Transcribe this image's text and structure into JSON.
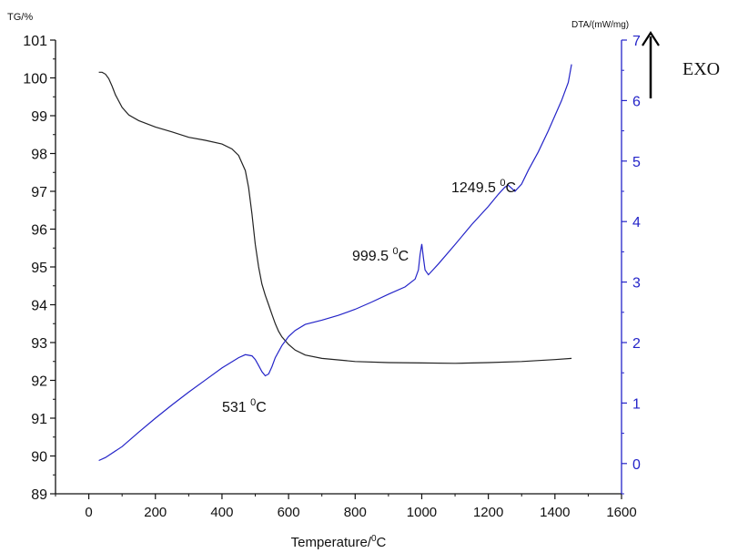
{
  "chart_data": {
    "type": "line",
    "xlabel": "Temperature/",
    "xlabel_sup": "0",
    "xlabel_tail": "C",
    "ylabel_left": "TG/%",
    "ylabel_right": "DTA/(mW/mg)",
    "xlim": [
      -100,
      1600
    ],
    "ylim_left": [
      89,
      101
    ],
    "ylim_right": [
      -0.5,
      7
    ],
    "x_ticks": [
      0,
      200,
      400,
      600,
      800,
      1000,
      1200,
      1400,
      1600
    ],
    "y_left_ticks": [
      89,
      90,
      91,
      92,
      93,
      94,
      95,
      96,
      97,
      98,
      99,
      100,
      101
    ],
    "y_right_ticks": [
      0,
      1,
      2,
      3,
      4,
      5,
      6,
      7
    ],
    "grid": false,
    "colors": {
      "tg": "#222222",
      "dta": "#2424c8",
      "axis": "#111111",
      "right_axis": "#2424c8"
    },
    "series": [
      {
        "axis": "left",
        "x": [
          30,
          40,
          50,
          60,
          70,
          80,
          100,
          120,
          150,
          200,
          250,
          300,
          350,
          400,
          430,
          450,
          470,
          480,
          490,
          500,
          510,
          520,
          530,
          540,
          550,
          560,
          570,
          580,
          600,
          620,
          650,
          700,
          800,
          900,
          1000,
          1100,
          1200,
          1300,
          1400,
          1450
        ],
        "values": [
          100.15,
          100.15,
          100.1,
          99.98,
          99.78,
          99.55,
          99.22,
          99.02,
          98.87,
          98.7,
          98.57,
          98.43,
          98.35,
          98.25,
          98.12,
          97.95,
          97.55,
          97.1,
          96.4,
          95.6,
          95.0,
          94.55,
          94.25,
          94.0,
          93.75,
          93.5,
          93.3,
          93.15,
          92.95,
          92.8,
          92.67,
          92.58,
          92.5,
          92.47,
          92.46,
          92.45,
          92.47,
          92.5,
          92.55,
          92.58
        ]
      },
      {
        "axis": "right",
        "x": [
          30,
          50,
          100,
          150,
          200,
          250,
          300,
          350,
          400,
          450,
          470,
          490,
          500,
          510,
          520,
          530,
          540,
          550,
          560,
          580,
          600,
          620,
          650,
          700,
          750,
          800,
          850,
          900,
          950,
          980,
          990,
          995,
          1000,
          1005,
          1010,
          1020,
          1050,
          1100,
          1150,
          1200,
          1230,
          1250,
          1260,
          1270,
          1280,
          1300,
          1320,
          1350,
          1380,
          1400,
          1420,
          1440,
          1450
        ],
        "values": [
          0.05,
          0.1,
          0.28,
          0.52,
          0.75,
          0.97,
          1.18,
          1.38,
          1.58,
          1.75,
          1.8,
          1.78,
          1.72,
          1.62,
          1.52,
          1.45,
          1.48,
          1.6,
          1.75,
          1.95,
          2.1,
          2.2,
          2.3,
          2.37,
          2.45,
          2.55,
          2.67,
          2.8,
          2.92,
          3.05,
          3.2,
          3.45,
          3.63,
          3.4,
          3.2,
          3.12,
          3.3,
          3.62,
          3.95,
          4.25,
          4.45,
          4.57,
          4.6,
          4.55,
          4.5,
          4.62,
          4.85,
          5.15,
          5.5,
          5.75,
          6.0,
          6.3,
          6.6
        ]
      }
    ],
    "annotations": [
      {
        "base": "531 ",
        "sup": "0",
        "tail": "C"
      },
      {
        "base": "999.5 ",
        "sup": "0",
        "tail": "C"
      },
      {
        "base": "1249.5 ",
        "sup": "0",
        "tail": "C"
      }
    ],
    "exo_label": "EXO"
  }
}
